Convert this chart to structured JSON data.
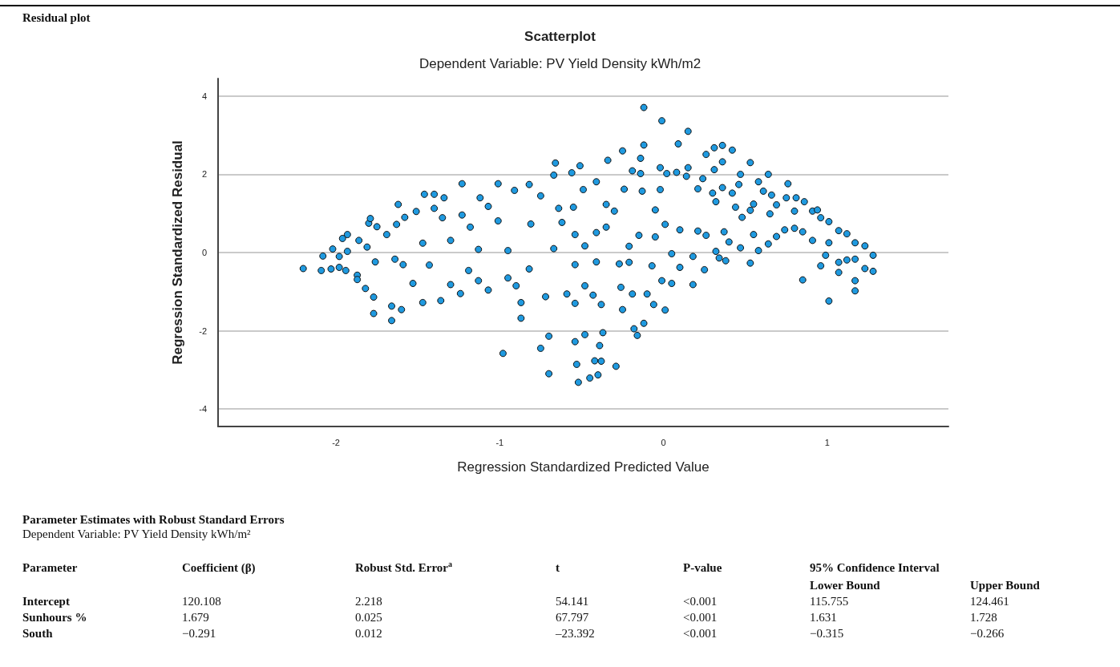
{
  "chart_data": {
    "type": "scatter",
    "title": "Scatterplot",
    "subtitle": "Dependent Variable: PV Yield Density kWh/m2",
    "xlabel": "Regression Standardized Predicted Value",
    "ylabel": "Regression Standardized Residual",
    "xlim": [
      -2.72,
      1.74
    ],
    "xticks": [
      -2,
      -1,
      0,
      1
    ],
    "ylim": [
      -4.45,
      4.45
    ],
    "yticks": [
      -4,
      -2,
      0,
      2,
      4
    ],
    "grid": "y",
    "marker": "circle",
    "series": [
      {
        "color": "#1f9ae0",
        "x": [
          -2.2,
          -2.09,
          -2.08,
          -2.03,
          -2.02,
          -1.98,
          -1.98,
          -1.96,
          -1.94,
          -1.93,
          -1.93,
          -1.87,
          -1.87,
          -1.86,
          -1.82,
          -1.81,
          -1.8,
          -1.79,
          -1.77,
          -1.77,
          -1.76,
          -1.75,
          -1.69,
          -1.66,
          -1.66,
          -1.64,
          -1.63,
          -1.62,
          -1.6,
          -1.59,
          -1.58,
          -1.53,
          -1.51,
          -1.47,
          -1.47,
          -1.46,
          -1.43,
          -1.4,
          -1.4,
          -1.36,
          -1.35,
          -1.34,
          -1.3,
          -1.3,
          -1.24,
          -1.23,
          -1.23,
          -1.19,
          -1.18,
          -1.13,
          -1.13,
          -1.12,
          -1.07,
          -1.07,
          -1.01,
          -1.01,
          -0.98,
          -0.95,
          -0.95,
          -0.91,
          -0.9,
          -0.87,
          -0.87,
          -0.82,
          -0.82,
          -0.81,
          -0.75,
          -0.75,
          -0.72,
          -0.7,
          -0.7,
          -0.66,
          -0.67,
          -0.67,
          -0.64,
          -0.62,
          -0.59,
          -0.56,
          -0.55,
          -0.54,
          -0.53,
          -0.52,
          -0.51,
          -0.54,
          -0.54,
          -0.45,
          -0.4,
          -0.42,
          -0.38,
          -0.39,
          -0.29,
          -0.37,
          -0.48,
          -0.49,
          -0.48,
          -0.48,
          -0.54,
          -0.43,
          -0.41,
          -0.41,
          -0.41,
          -0.38,
          -0.35,
          -0.35,
          -0.34,
          -0.3,
          -0.27,
          -0.26,
          -0.25,
          -0.24,
          -0.25,
          -0.21,
          -0.21,
          -0.19,
          -0.19,
          -0.18,
          -0.16,
          -0.15,
          -0.13,
          -0.14,
          -0.12,
          -0.12,
          -0.14,
          -0.12,
          -0.1,
          -0.07,
          -0.06,
          -0.05,
          -0.05,
          -0.02,
          -0.02,
          -0.01,
          -0.01,
          0.01,
          0.01,
          0.02,
          0.05,
          0.05,
          0.08,
          0.09,
          0.1,
          0.1,
          0.14,
          0.15,
          0.15,
          0.18,
          0.18,
          0.21,
          0.21,
          0.24,
          0.25,
          0.26,
          0.26,
          0.3,
          0.31,
          0.31,
          0.32,
          0.32,
          0.34,
          0.36,
          0.36,
          0.36,
          0.37,
          0.38,
          0.4,
          0.42,
          0.42,
          0.44,
          0.46,
          0.47,
          0.47,
          0.48,
          0.53,
          0.53,
          0.53,
          0.55,
          0.55,
          0.58,
          0.58,
          0.61,
          0.64,
          0.64,
          0.65,
          0.66,
          0.69,
          0.69,
          0.74,
          0.76,
          0.75,
          0.8,
          0.8,
          0.81,
          0.85,
          0.85,
          0.86,
          0.91,
          0.91,
          0.94,
          0.96,
          0.96,
          0.99,
          1.01,
          1.01,
          1.01,
          1.07,
          1.07,
          1.07,
          1.12,
          1.12,
          1.17,
          1.17,
          1.17,
          1.17,
          1.23,
          1.23,
          1.28,
          1.28
        ],
        "values": [
          -0.41,
          -0.46,
          -0.09,
          -0.42,
          0.09,
          -0.1,
          -0.38,
          0.36,
          -0.46,
          0.46,
          0.03,
          -0.58,
          -0.69,
          0.31,
          -0.92,
          0.14,
          0.75,
          0.87,
          -1.14,
          -1.56,
          -0.24,
          0.66,
          0.46,
          -1.74,
          -1.37,
          -0.17,
          0.72,
          1.23,
          -1.46,
          -0.31,
          0.9,
          -0.79,
          1.05,
          -1.28,
          0.24,
          1.49,
          -0.32,
          1.49,
          1.13,
          -1.23,
          0.89,
          1.4,
          0.31,
          -0.82,
          -1.05,
          1.76,
          0.96,
          -0.46,
          0.65,
          -0.72,
          0.08,
          1.4,
          -0.96,
          1.18,
          1.76,
          0.81,
          -2.58,
          -0.65,
          0.05,
          1.59,
          -0.85,
          -1.68,
          -1.28,
          1.74,
          -0.42,
          0.73,
          -2.45,
          1.45,
          -1.13,
          -3.1,
          -2.14,
          2.29,
          1.98,
          0.1,
          1.13,
          0.77,
          -1.06,
          2.04,
          1.16,
          -2.28,
          -2.86,
          -3.32,
          2.22,
          0.46,
          -0.31,
          -3.21,
          -3.13,
          -2.77,
          -2.78,
          -2.38,
          -2.91,
          -2.05,
          -2.1,
          1.61,
          0.17,
          -0.85,
          -1.3,
          -1.09,
          1.81,
          0.51,
          -0.24,
          -1.33,
          1.23,
          0.65,
          2.36,
          1.06,
          -0.29,
          -0.89,
          2.6,
          1.62,
          -1.46,
          0.16,
          -0.25,
          2.09,
          -1.06,
          -1.95,
          -2.12,
          0.44,
          1.57,
          2.02,
          3.71,
          2.75,
          2.41,
          -1.81,
          -1.06,
          -0.34,
          -1.33,
          1.09,
          0.4,
          2.17,
          1.61,
          3.37,
          -0.72,
          0.72,
          -1.47,
          2.02,
          -0.03,
          -0.79,
          2.05,
          2.78,
          0.58,
          -0.38,
          1.95,
          2.17,
          3.1,
          -0.82,
          -0.1,
          1.63,
          0.55,
          1.89,
          -0.44,
          2.51,
          0.44,
          1.52,
          2.68,
          2.12,
          1.3,
          0.03,
          -0.14,
          1.66,
          2.74,
          2.32,
          0.53,
          -0.21,
          0.27,
          2.62,
          1.52,
          1.16,
          1.74,
          2.0,
          0.12,
          0.9,
          2.3,
          1.08,
          -0.27,
          0.46,
          1.24,
          1.81,
          0.05,
          1.57,
          2.0,
          0.22,
          0.99,
          1.47,
          1.22,
          0.41,
          0.58,
          1.76,
          1.4,
          1.06,
          0.62,
          1.4,
          0.53,
          -0.7,
          1.3,
          0.31,
          1.06,
          1.09,
          0.89,
          -0.34,
          -0.07,
          -1.24,
          0.79,
          0.25,
          0.56,
          -0.25,
          -0.51,
          0.48,
          -0.19,
          0.25,
          -0.17,
          -0.72,
          -0.98,
          0.17,
          -0.41,
          -0.07,
          -0.48
        ]
      }
    ],
    "annotations": [
      "Residual plot",
      "Parameter Estimates with Robust Standard Errors",
      "Dependent Variable: PV Yield Density kWh/m²",
      "Parameter",
      "Coefficient (β)",
      "Robust Std. Error$^{a}$",
      "t",
      "P-value",
      "95% Confidence Interval",
      "Lower Bound",
      "Upper Bound",
      "Intercept",
      "120.108",
      "2.218",
      "54.141",
      "<0.001",
      "115.755",
      "124.461",
      "Sunhours %",
      "1.679",
      "0.025",
      "67.797",
      "<0.001",
      "1.631",
      "1.728",
      "South",
      "−0.291",
      "0.012",
      "–23.392",
      "<0.001",
      "−0.315",
      "−0.266"
    ]
  }
}
